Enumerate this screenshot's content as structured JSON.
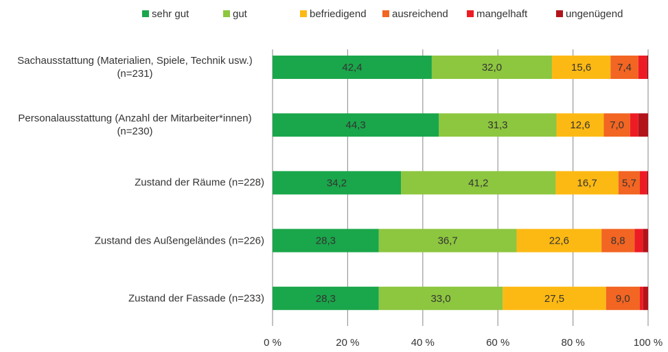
{
  "chart_data": {
    "type": "stacked_barh",
    "categories": [
      "Sachausstattung (Materialien, Spiele, Technik usw.) (n=231)",
      "Personalausstattung (Anzahl der Mitarbeiter*innen) (n=230)",
      "Zustand der Räume (n=228)",
      "Zustand des Außengeländes (n=226)",
      "Zustand der Fassade (n=233)"
    ],
    "series": [
      {
        "name": "sehr gut",
        "color": "#1aa64a",
        "values": [
          42.4,
          44.3,
          34.2,
          28.3,
          28.3
        ],
        "value_labels": [
          "42,4",
          "44,3",
          "34,2",
          "28,3",
          "28,3"
        ]
      },
      {
        "name": "gut",
        "color": "#8dc63f",
        "values": [
          32.0,
          31.3,
          41.2,
          36.7,
          33.0
        ],
        "value_labels": [
          "32,0",
          "31,3",
          "41,2",
          "36,7",
          "33,0"
        ]
      },
      {
        "name": "befriedigend",
        "color": "#fdb913",
        "values": [
          15.6,
          12.6,
          16.7,
          22.6,
          27.5
        ],
        "value_labels": [
          "15,6",
          "12,6",
          "16,7",
          "22,6",
          "27,5"
        ]
      },
      {
        "name": "ausreichend",
        "color": "#f26522",
        "values": [
          7.4,
          7.0,
          5.7,
          8.8,
          9.0
        ],
        "value_labels": [
          "7,4",
          "7,0",
          "5,7",
          "8,8",
          "9,0"
        ]
      },
      {
        "name": "mangelhaft",
        "color": "#ed1c24",
        "values": [
          2.2,
          2.2,
          1.8,
          2.2,
          0.9
        ]
      },
      {
        "name": "ungenügend",
        "color": "#b2141c",
        "values": [
          0.4,
          2.6,
          0.4,
          1.4,
          1.3
        ]
      }
    ],
    "xlim": [
      0,
      100
    ],
    "xticks": [
      {
        "value": 0,
        "label": "0 %"
      },
      {
        "value": 20,
        "label": "20 %"
      },
      {
        "value": 40,
        "label": "40 %"
      },
      {
        "value": 60,
        "label": "60 %"
      },
      {
        "value": 80,
        "label": "80 %"
      },
      {
        "value": 100,
        "label": "100 %"
      }
    ],
    "grid": true,
    "legend": "top"
  }
}
